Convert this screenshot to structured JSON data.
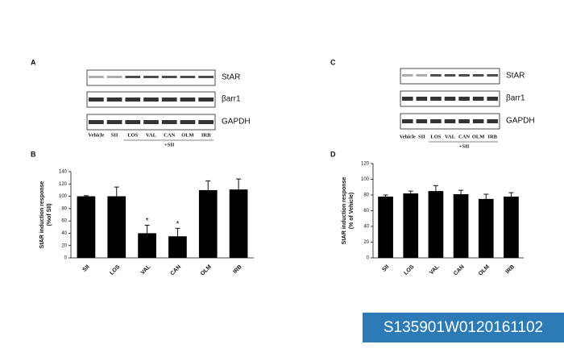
{
  "panels": [
    "A",
    "B",
    "C",
    "D"
  ],
  "blot_labels": [
    "StAR",
    "βarr1",
    "GAPDH"
  ],
  "lanes": [
    "Vehicle",
    "SII",
    "LOS",
    "VAL",
    "CAN",
    "OLM",
    "IRB"
  ],
  "lane_group": "+SII",
  "product_id": "S135901W0120161102",
  "chart_data": [
    {
      "type": "bar",
      "ylabel": [
        "StAR induction response",
        "(%of SII)"
      ],
      "categories": [
        "SII",
        "LOS",
        "VAL",
        "CAN",
        "OLM",
        "IRB"
      ],
      "values": [
        100,
        100,
        40,
        35,
        110,
        111
      ],
      "errors": [
        1,
        15,
        13,
        13,
        15,
        17
      ],
      "color": "#000000",
      "ylim": [
        0,
        140
      ],
      "yticks": [
        0,
        20,
        40,
        60,
        80,
        100,
        120,
        140
      ],
      "annotations": [
        {
          "text": "*",
          "x": "VAL"
        },
        {
          "text": "*",
          "x": "CAN"
        }
      ]
    },
    {
      "type": "bar",
      "ylabel": [
        "StAR induction response",
        "(% of Vehicle)"
      ],
      "categories": [
        "SII",
        "LOS",
        "VAL",
        "CAN",
        "OLM",
        "IRB"
      ],
      "values": [
        78,
        82,
        85,
        81,
        75,
        78
      ],
      "errors": [
        2,
        3,
        7,
        5,
        6,
        5
      ],
      "color": "#000000",
      "ylim": [
        0,
        120
      ],
      "yticks": [
        0,
        20,
        40,
        60,
        80,
        100,
        120
      ]
    }
  ]
}
